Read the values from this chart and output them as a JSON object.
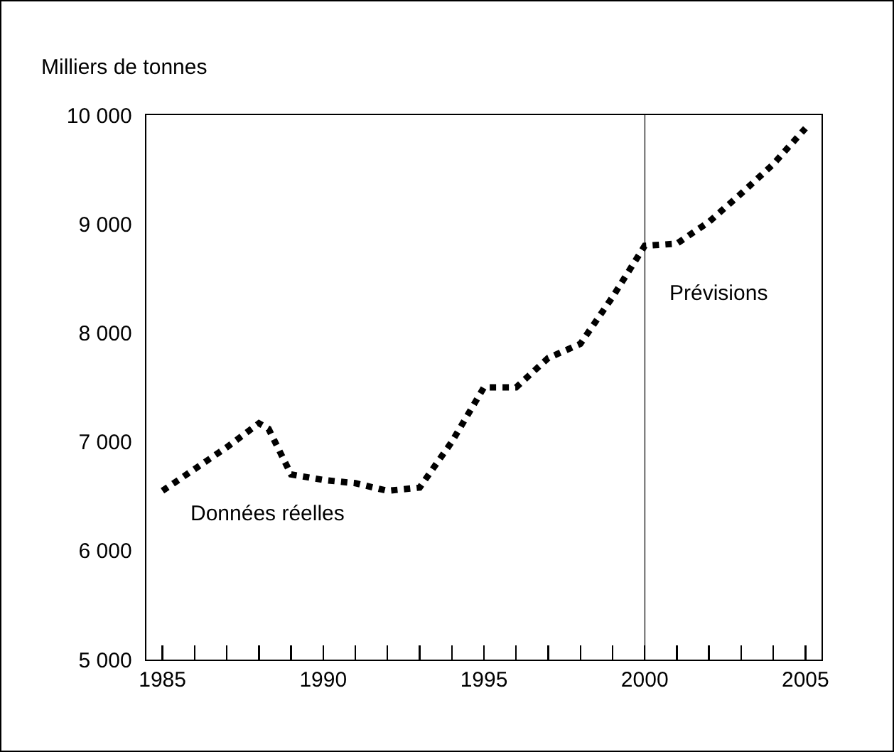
{
  "chart_data": {
    "type": "line",
    "ylabel": "Milliers de tonnes",
    "x": [
      1985,
      1986,
      1987,
      1988,
      1988.3,
      1989,
      1990,
      1991,
      1992,
      1993,
      1994,
      1995,
      1996,
      1997,
      1998,
      1999,
      2000,
      2001,
      2002,
      2003,
      2004,
      2005
    ],
    "series": [
      {
        "color": "#000000",
        "values": [
          6550,
          6750,
          6950,
          7170,
          7120,
          6700,
          6650,
          6620,
          6550,
          6580,
          7000,
          7500,
          7500,
          7770,
          7900,
          8330,
          8800,
          8820,
          9020,
          9280,
          9550,
          9880
        ]
      }
    ],
    "xlim": [
      1984.5,
      2005.5
    ],
    "xticks": [
      1985,
      {
        "value": 1986,
        "label": null
      },
      {
        "value": 1987,
        "label": null
      },
      {
        "value": 1988,
        "label": null
      },
      {
        "value": 1989,
        "label": null
      },
      1990,
      {
        "value": 1991,
        "label": null
      },
      {
        "value": 1992,
        "label": null
      },
      {
        "value": 1993,
        "label": null
      },
      {
        "value": 1994,
        "label": null
      },
      1995,
      {
        "value": 1996,
        "label": null
      },
      {
        "value": 1997,
        "label": null
      },
      {
        "value": 1998,
        "label": null
      },
      {
        "value": 1999,
        "label": null
      },
      2000,
      {
        "value": 2001,
        "label": null
      },
      {
        "value": 2002,
        "label": null
      },
      {
        "value": 2003,
        "label": null
      },
      {
        "value": 2004,
        "label": null
      },
      2005
    ],
    "ylim": [
      5000,
      10000
    ],
    "yticks": [
      {
        "value": 5000,
        "label": "5 000"
      },
      {
        "value": 6000,
        "label": "6 000"
      },
      {
        "value": 7000,
        "label": "7 000"
      },
      {
        "value": 8000,
        "label": "8 000"
      },
      {
        "value": 9000,
        "label": "9 000"
      },
      {
        "value": 10000,
        "label": "10 000"
      }
    ],
    "ref_lines": [
      {
        "axis": "x",
        "value": 2000,
        "color": "#808080",
        "line_style": "solid"
      }
    ],
    "annotations": [
      "Données réelles",
      "Prévisions"
    ],
    "grid": false,
    "marker": "none",
    "line_style": "dotted"
  }
}
